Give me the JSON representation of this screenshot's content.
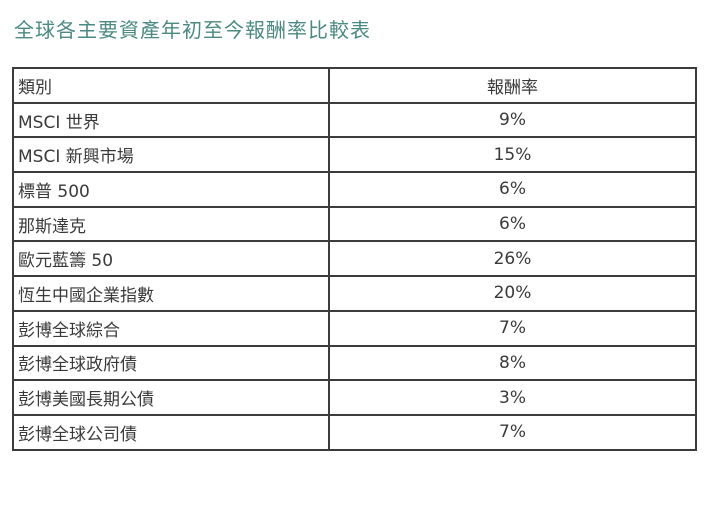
{
  "title": "全球各主要資產年初至今報酬率比較表",
  "table": {
    "headers": [
      "類別",
      "報酬率"
    ],
    "rows": [
      [
        "MSCI 世界",
        "9%"
      ],
      [
        "MSCI 新興市場",
        "15%"
      ],
      [
        "標普 500",
        "6%"
      ],
      [
        "那斯達克",
        "6%"
      ],
      [
        "歐元藍籌 50",
        "26%"
      ],
      [
        "恆生中國企業指數",
        "20%"
      ],
      [
        "彭博全球綜合",
        "7%"
      ],
      [
        "彭博全球政府債",
        "8%"
      ],
      [
        "彭博美國長期公債",
        "3%"
      ],
      [
        "彭博全球公司債",
        "7%"
      ]
    ]
  }
}
